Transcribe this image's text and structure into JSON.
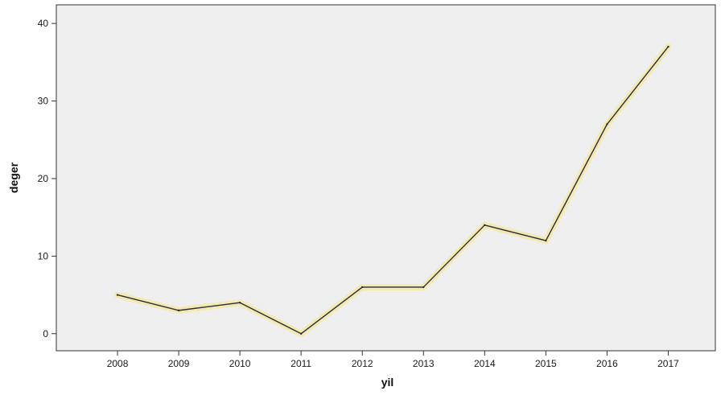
{
  "chart_data": {
    "type": "line",
    "title": "",
    "xlabel": "yil",
    "ylabel": "deger",
    "categories": [
      "2008",
      "2009",
      "2010",
      "2011",
      "2012",
      "2013",
      "2014",
      "2015",
      "2016",
      "2017"
    ],
    "series": [
      {
        "values": [
          5,
          3,
          4,
          0,
          6,
          6,
          14,
          12,
          27,
          37
        ]
      }
    ],
    "yticks": [
      0,
      10,
      20,
      30,
      40
    ],
    "ylim": [
      -2.2,
      42.4
    ],
    "grid": false,
    "legend": "none",
    "colors": {
      "plot_background": "#efefef",
      "line": "#2b2b3a",
      "line_halo": "#f3e7a8",
      "axis": "#333333"
    }
  }
}
